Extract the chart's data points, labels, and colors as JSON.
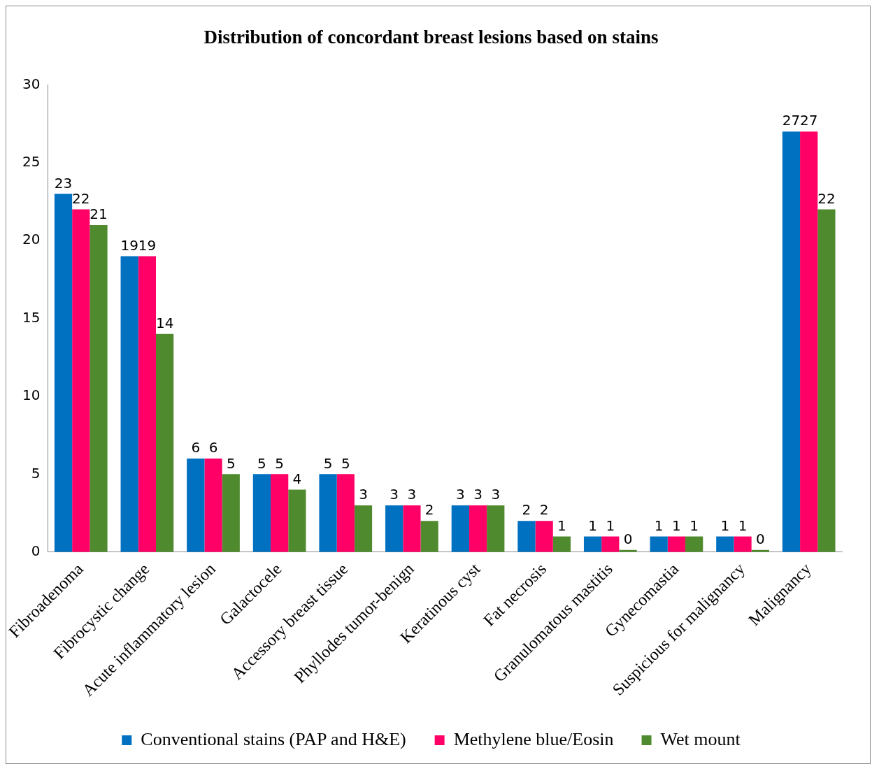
{
  "chart_data": {
    "type": "bar",
    "title": "Distribution of concordant breast lesions based on stains",
    "categories": [
      "Fibroadenoma",
      "Fibrocystic change",
      "Acute inflammatory lesion",
      "Galactocele",
      "Accessory breast tissue",
      "Phyllodes tumor-benign",
      "Keratinous cyst",
      "Fat necrosis",
      "Granulomatous mastitis",
      "Gynecomastia",
      "Suspicious for malignancy",
      "Malignancy"
    ],
    "series": [
      {
        "name": "Conventional stains (PAP and H&E)",
        "color": "#0070c0",
        "values": [
          23,
          19,
          6,
          5,
          5,
          3,
          3,
          2,
          1,
          1,
          1,
          27
        ]
      },
      {
        "name": "Methylene blue/Eosin",
        "color": "#ff0066",
        "values": [
          22,
          19,
          6,
          5,
          5,
          3,
          3,
          2,
          1,
          1,
          1,
          27
        ]
      },
      {
        "name": "Wet mount",
        "color": "#4f8a2e",
        "values": [
          21,
          14,
          5,
          4,
          3,
          2,
          3,
          1,
          0,
          1,
          0,
          22
        ]
      }
    ],
    "ylim": [
      0,
      30
    ],
    "yticks": [
      0,
      5,
      10,
      15,
      20,
      25,
      30
    ],
    "grid": false,
    "legend": "bottom",
    "data_labels": true
  }
}
